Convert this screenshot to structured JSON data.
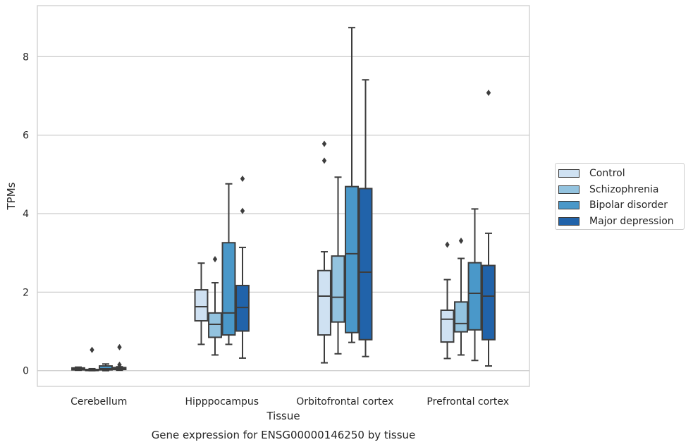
{
  "chart_data": {
    "type": "box",
    "title": "",
    "caption": "Gene expression for ENSG00000146250 by tissue",
    "xlabel": "Tissue",
    "ylabel": "TPMs",
    "ylim": [
      -0.4,
      9.3
    ],
    "yticks": [
      0,
      2,
      4,
      6,
      8
    ],
    "grid": "horizontal",
    "legend_position": "right",
    "categories": [
      "Cerebellum",
      "Hipppocampus",
      "Orbitofrontal cortex",
      "Prefrontal cortex"
    ],
    "series": [
      {
        "name": "Control",
        "color": "#cfe1f2",
        "boxes": [
          {
            "whisker_low": 0.01,
            "q1": 0.02,
            "median": 0.04,
            "q3": 0.07,
            "whisker_high": 0.09,
            "outliers": []
          },
          {
            "whisker_low": 0.67,
            "q1": 1.27,
            "median": 1.63,
            "q3": 2.06,
            "whisker_high": 2.74,
            "outliers": []
          },
          {
            "whisker_low": 0.2,
            "q1": 0.91,
            "median": 1.9,
            "q3": 2.55,
            "whisker_high": 3.03,
            "outliers": [
              5.35,
              5.78
            ]
          },
          {
            "whisker_low": 0.31,
            "q1": 0.73,
            "median": 1.31,
            "q3": 1.54,
            "whisker_high": 2.32,
            "outliers": [
              3.21
            ]
          }
        ]
      },
      {
        "name": "Schizophrenia",
        "color": "#93c3df",
        "boxes": [
          {
            "whisker_low": 0.0,
            "q1": 0.01,
            "median": 0.02,
            "q3": 0.03,
            "whisker_high": 0.05,
            "outliers": [
              0.53
            ]
          },
          {
            "whisker_low": 0.4,
            "q1": 0.85,
            "median": 1.18,
            "q3": 1.47,
            "whisker_high": 2.24,
            "outliers": [
              2.84
            ]
          },
          {
            "whisker_low": 0.43,
            "q1": 1.24,
            "median": 1.87,
            "q3": 2.92,
            "whisker_high": 4.93,
            "outliers": []
          },
          {
            "whisker_low": 0.4,
            "q1": 0.99,
            "median": 1.2,
            "q3": 1.75,
            "whisker_high": 2.86,
            "outliers": [
              3.31
            ]
          }
        ]
      },
      {
        "name": "Bipolar disorder",
        "color": "#4a98c9",
        "boxes": [
          {
            "whisker_low": 0.0,
            "q1": 0.02,
            "median": 0.05,
            "q3": 0.12,
            "whisker_high": 0.17,
            "outliers": []
          },
          {
            "whisker_low": 0.67,
            "q1": 0.91,
            "median": 1.47,
            "q3": 3.26,
            "whisker_high": 4.76,
            "outliers": []
          },
          {
            "whisker_low": 0.72,
            "q1": 0.97,
            "median": 2.98,
            "q3": 4.69,
            "whisker_high": 8.74,
            "outliers": []
          },
          {
            "whisker_low": 0.26,
            "q1": 1.04,
            "median": 1.97,
            "q3": 2.75,
            "whisker_high": 4.12,
            "outliers": []
          }
        ]
      },
      {
        "name": "Major depression",
        "color": "#2163aa",
        "boxes": [
          {
            "whisker_low": 0.01,
            "q1": 0.03,
            "median": 0.05,
            "q3": 0.08,
            "whisker_high": 0.1,
            "outliers": [
              0.15,
              0.6
            ]
          },
          {
            "whisker_low": 0.32,
            "q1": 1.01,
            "median": 1.61,
            "q3": 2.17,
            "whisker_high": 3.14,
            "outliers": [
              4.07,
              4.89
            ]
          },
          {
            "whisker_low": 0.36,
            "q1": 0.79,
            "median": 2.51,
            "q3": 4.64,
            "whisker_high": 7.41,
            "outliers": []
          },
          {
            "whisker_low": 0.12,
            "q1": 0.79,
            "median": 1.9,
            "q3": 2.68,
            "whisker_high": 3.5,
            "outliers": [
              7.08
            ]
          }
        ]
      }
    ]
  }
}
